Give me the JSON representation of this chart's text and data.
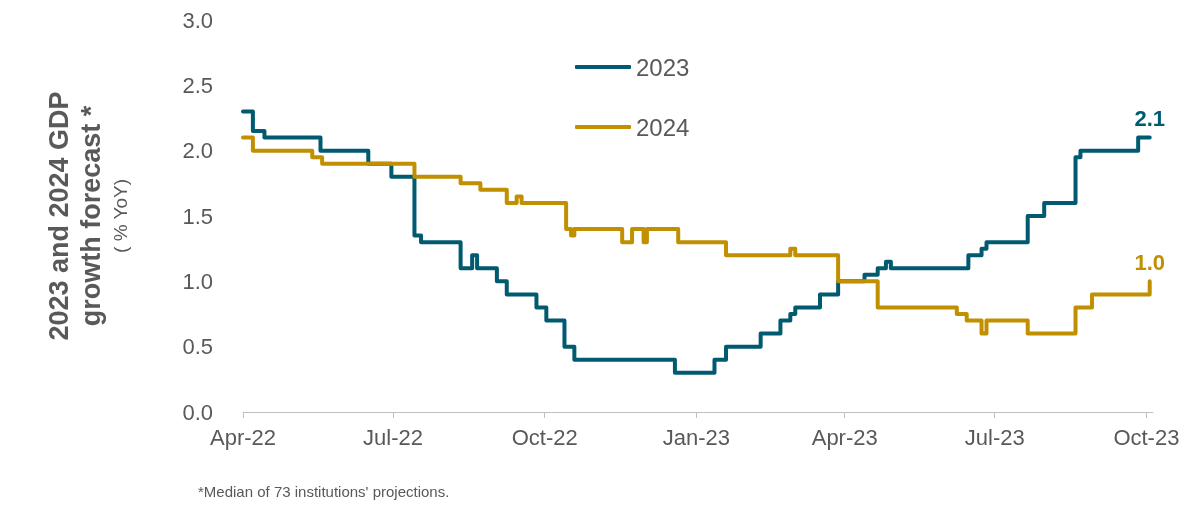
{
  "chart_data": {
    "type": "step",
    "ylabel": "2023 and 2024 GDP\ngrowth forecast *\n( % YoY)",
    "annotations": [
      "*Median of 73 institutions' projections."
    ],
    "xlim": [
      "2022-04-01",
      "2023-10-05"
    ],
    "ylim": [
      0,
      3
    ],
    "yticks": [
      {
        "value": 0,
        "label": "0.0"
      },
      {
        "value": 0.5,
        "label": "0.5"
      },
      {
        "value": 1,
        "label": "1.0"
      },
      {
        "value": 1.5,
        "label": "1.5"
      },
      {
        "value": 2,
        "label": "2.0"
      },
      {
        "value": 2.5,
        "label": "2.5"
      },
      {
        "value": 3,
        "label": "3.0"
      }
    ],
    "xticks": [
      {
        "value": "2022-04-01",
        "label": "Apr-22"
      },
      {
        "value": "2022-07-01",
        "label": "Jul-22"
      },
      {
        "value": "2022-10-01",
        "label": "Oct-22"
      },
      {
        "value": "2023-01-01",
        "label": "Jan-23"
      },
      {
        "value": "2023-04-01",
        "label": "Apr-23"
      },
      {
        "value": "2023-07-01",
        "label": "Jul-23"
      },
      {
        "value": "2023-10-01",
        "label": "Oct-23"
      }
    ],
    "grid": false,
    "legend": "top",
    "marker": "none",
    "line_style": "solid",
    "series": [
      {
        "name": "2023",
        "color": "#005a70",
        "x": [
          "2022-04-01",
          "2022-04-07",
          "2022-04-14",
          "2022-05-18",
          "2022-06-16",
          "2022-06-30",
          "2022-07-14",
          "2022-07-18",
          "2022-08-11",
          "2022-08-18",
          "2022-08-21",
          "2022-09-02",
          "2022-09-08",
          "2022-09-26",
          "2022-10-02",
          "2022-10-13",
          "2022-10-19",
          "2022-12-19",
          "2023-01-12",
          "2023-01-19",
          "2023-02-09",
          "2023-02-21",
          "2023-02-27",
          "2023-03-02",
          "2023-03-17",
          "2023-03-28",
          "2023-04-13",
          "2023-04-21",
          "2023-04-26",
          "2023-04-29",
          "2023-06-15",
          "2023-06-23",
          "2023-06-26",
          "2023-07-21",
          "2023-07-31",
          "2023-08-19",
          "2023-08-22",
          "2023-09-26",
          "2023-10-03"
        ],
        "values": [
          2.3,
          2.15,
          2.1,
          2.0,
          1.9,
          1.8,
          1.35,
          1.3,
          1.1,
          1.2,
          1.1,
          1.0,
          0.9,
          0.8,
          0.7,
          0.5,
          0.4,
          0.3,
          0.4,
          0.5,
          0.6,
          0.7,
          0.75,
          0.8,
          0.9,
          1.0,
          1.05,
          1.1,
          1.15,
          1.1,
          1.2,
          1.25,
          1.3,
          1.5,
          1.6,
          1.95,
          2.0,
          2.1,
          2.1
        ],
        "value_labels": [
          null,
          null,
          null,
          null,
          null,
          null,
          null,
          null,
          null,
          null,
          null,
          null,
          null,
          null,
          null,
          null,
          null,
          null,
          null,
          null,
          null,
          null,
          null,
          null,
          null,
          null,
          null,
          null,
          null,
          null,
          null,
          null,
          null,
          null,
          null,
          null,
          null,
          null,
          "2.1"
        ]
      },
      {
        "name": "2024",
        "color": "#c09000",
        "x": [
          "2022-04-01",
          "2022-04-07",
          "2022-05-13",
          "2022-05-19",
          "2022-07-14",
          "2022-08-11",
          "2022-08-23",
          "2022-09-08",
          "2022-09-14",
          "2022-09-17",
          "2022-10-14",
          "2022-10-17",
          "2022-10-19",
          "2022-11-17",
          "2022-11-23",
          "2022-11-30",
          "2022-12-02",
          "2022-12-21",
          "2023-01-19",
          "2023-02-27",
          "2023-03-02",
          "2023-03-28",
          "2023-04-21",
          "2023-06-08",
          "2023-06-14",
          "2023-06-23",
          "2023-06-26",
          "2023-07-21",
          "2023-08-19",
          "2023-08-29",
          "2023-10-02",
          "2023-10-03"
        ],
        "values": [
          2.1,
          2.0,
          1.95,
          1.9,
          1.8,
          1.75,
          1.7,
          1.6,
          1.65,
          1.6,
          1.4,
          1.35,
          1.4,
          1.3,
          1.4,
          1.3,
          1.4,
          1.3,
          1.2,
          1.25,
          1.2,
          1.0,
          0.8,
          0.75,
          0.7,
          0.6,
          0.7,
          0.6,
          0.8,
          0.9,
          0.9,
          1.0
        ],
        "value_labels": [
          null,
          null,
          null,
          null,
          null,
          null,
          null,
          null,
          null,
          null,
          null,
          null,
          null,
          null,
          null,
          null,
          null,
          null,
          null,
          null,
          null,
          null,
          null,
          null,
          null,
          null,
          null,
          null,
          null,
          null,
          null,
          "1.0"
        ]
      }
    ]
  }
}
